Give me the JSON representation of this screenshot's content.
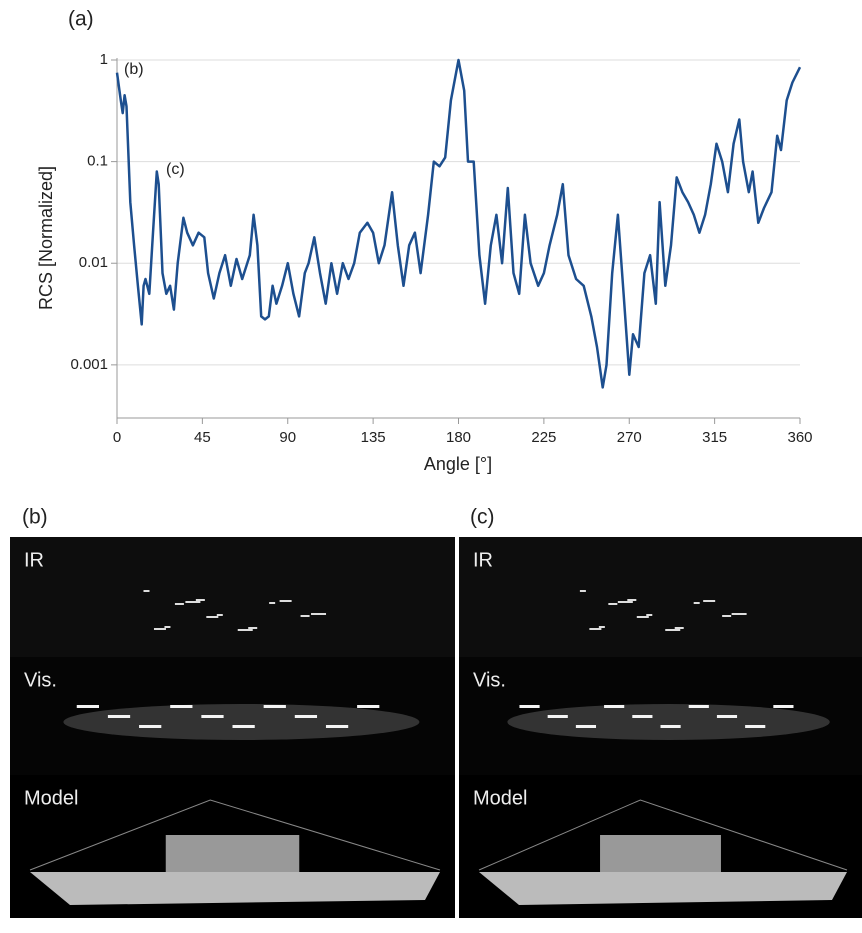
{
  "chart_data": {
    "type": "line",
    "panel_label": "(a)",
    "xlabel": "Angle [°]",
    "ylabel": "RCS [Normalized]",
    "annotations": [
      "(b)",
      "(c)"
    ],
    "color": "#1d4f8f",
    "log_scale_y": true,
    "grid": true,
    "xlim": [
      0,
      360
    ],
    "xticks": [
      0,
      45,
      90,
      135,
      180,
      225,
      270,
      315,
      360
    ],
    "ylim": [
      0.0003,
      1
    ],
    "yticks": [
      1,
      0.1,
      0.01,
      0.001
    ],
    "x": [
      0,
      2,
      3,
      4,
      5,
      7,
      9,
      11,
      13,
      14,
      15,
      17,
      19,
      21,
      22,
      24,
      26,
      28,
      30,
      32,
      35,
      37,
      40,
      43,
      46,
      48,
      51,
      54,
      57,
      60,
      63,
      66,
      70,
      72,
      74,
      76,
      78,
      80,
      82,
      84,
      87,
      90,
      93,
      96,
      99,
      101,
      104,
      107,
      110,
      113,
      116,
      119,
      122,
      125,
      128,
      132,
      135,
      138,
      141,
      145,
      148,
      151,
      154,
      157,
      160,
      164,
      167,
      170,
      173,
      176,
      180,
      183,
      185,
      188,
      191,
      194,
      197,
      200,
      203,
      206,
      209,
      212,
      215,
      218,
      222,
      225,
      228,
      232,
      235,
      238,
      242,
      246,
      250,
      253,
      256,
      258,
      261,
      264,
      267,
      270,
      272,
      275,
      278,
      281,
      284,
      286,
      289,
      292,
      295,
      298,
      301,
      304,
      307,
      310,
      313,
      316,
      319,
      322,
      325,
      328,
      330,
      333,
      335,
      338,
      341,
      345,
      348,
      350,
      353,
      356,
      360
    ],
    "values": [
      0.75,
      0.4,
      0.3,
      0.45,
      0.35,
      0.04,
      0.015,
      0.006,
      0.0025,
      0.006,
      0.007,
      0.005,
      0.02,
      0.08,
      0.06,
      0.008,
      0.005,
      0.006,
      0.0035,
      0.01,
      0.028,
      0.02,
      0.015,
      0.02,
      0.018,
      0.008,
      0.0045,
      0.008,
      0.012,
      0.006,
      0.011,
      0.007,
      0.012,
      0.03,
      0.015,
      0.003,
      0.0028,
      0.003,
      0.006,
      0.004,
      0.006,
      0.01,
      0.005,
      0.003,
      0.008,
      0.01,
      0.018,
      0.008,
      0.004,
      0.01,
      0.005,
      0.01,
      0.007,
      0.01,
      0.02,
      0.025,
      0.02,
      0.01,
      0.015,
      0.05,
      0.015,
      0.006,
      0.015,
      0.02,
      0.008,
      0.03,
      0.1,
      0.09,
      0.11,
      0.4,
      1.0,
      0.5,
      0.1,
      0.1,
      0.012,
      0.004,
      0.015,
      0.03,
      0.01,
      0.055,
      0.008,
      0.005,
      0.03,
      0.01,
      0.006,
      0.008,
      0.015,
      0.03,
      0.06,
      0.012,
      0.007,
      0.006,
      0.003,
      0.0015,
      0.0006,
      0.001,
      0.008,
      0.03,
      0.005,
      0.0008,
      0.002,
      0.0015,
      0.008,
      0.012,
      0.004,
      0.04,
      0.006,
      0.015,
      0.07,
      0.05,
      0.04,
      0.03,
      0.02,
      0.03,
      0.06,
      0.15,
      0.1,
      0.05,
      0.15,
      0.26,
      0.1,
      0.05,
      0.08,
      0.025,
      0.035,
      0.05,
      0.18,
      0.13,
      0.4,
      0.6,
      0.85
    ]
  },
  "panels": [
    {
      "label": "(b)",
      "rows": [
        "IR",
        "Vis.",
        "Model"
      ]
    },
    {
      "label": "(c)",
      "rows": [
        "IR",
        "Vis.",
        "Model"
      ]
    }
  ]
}
